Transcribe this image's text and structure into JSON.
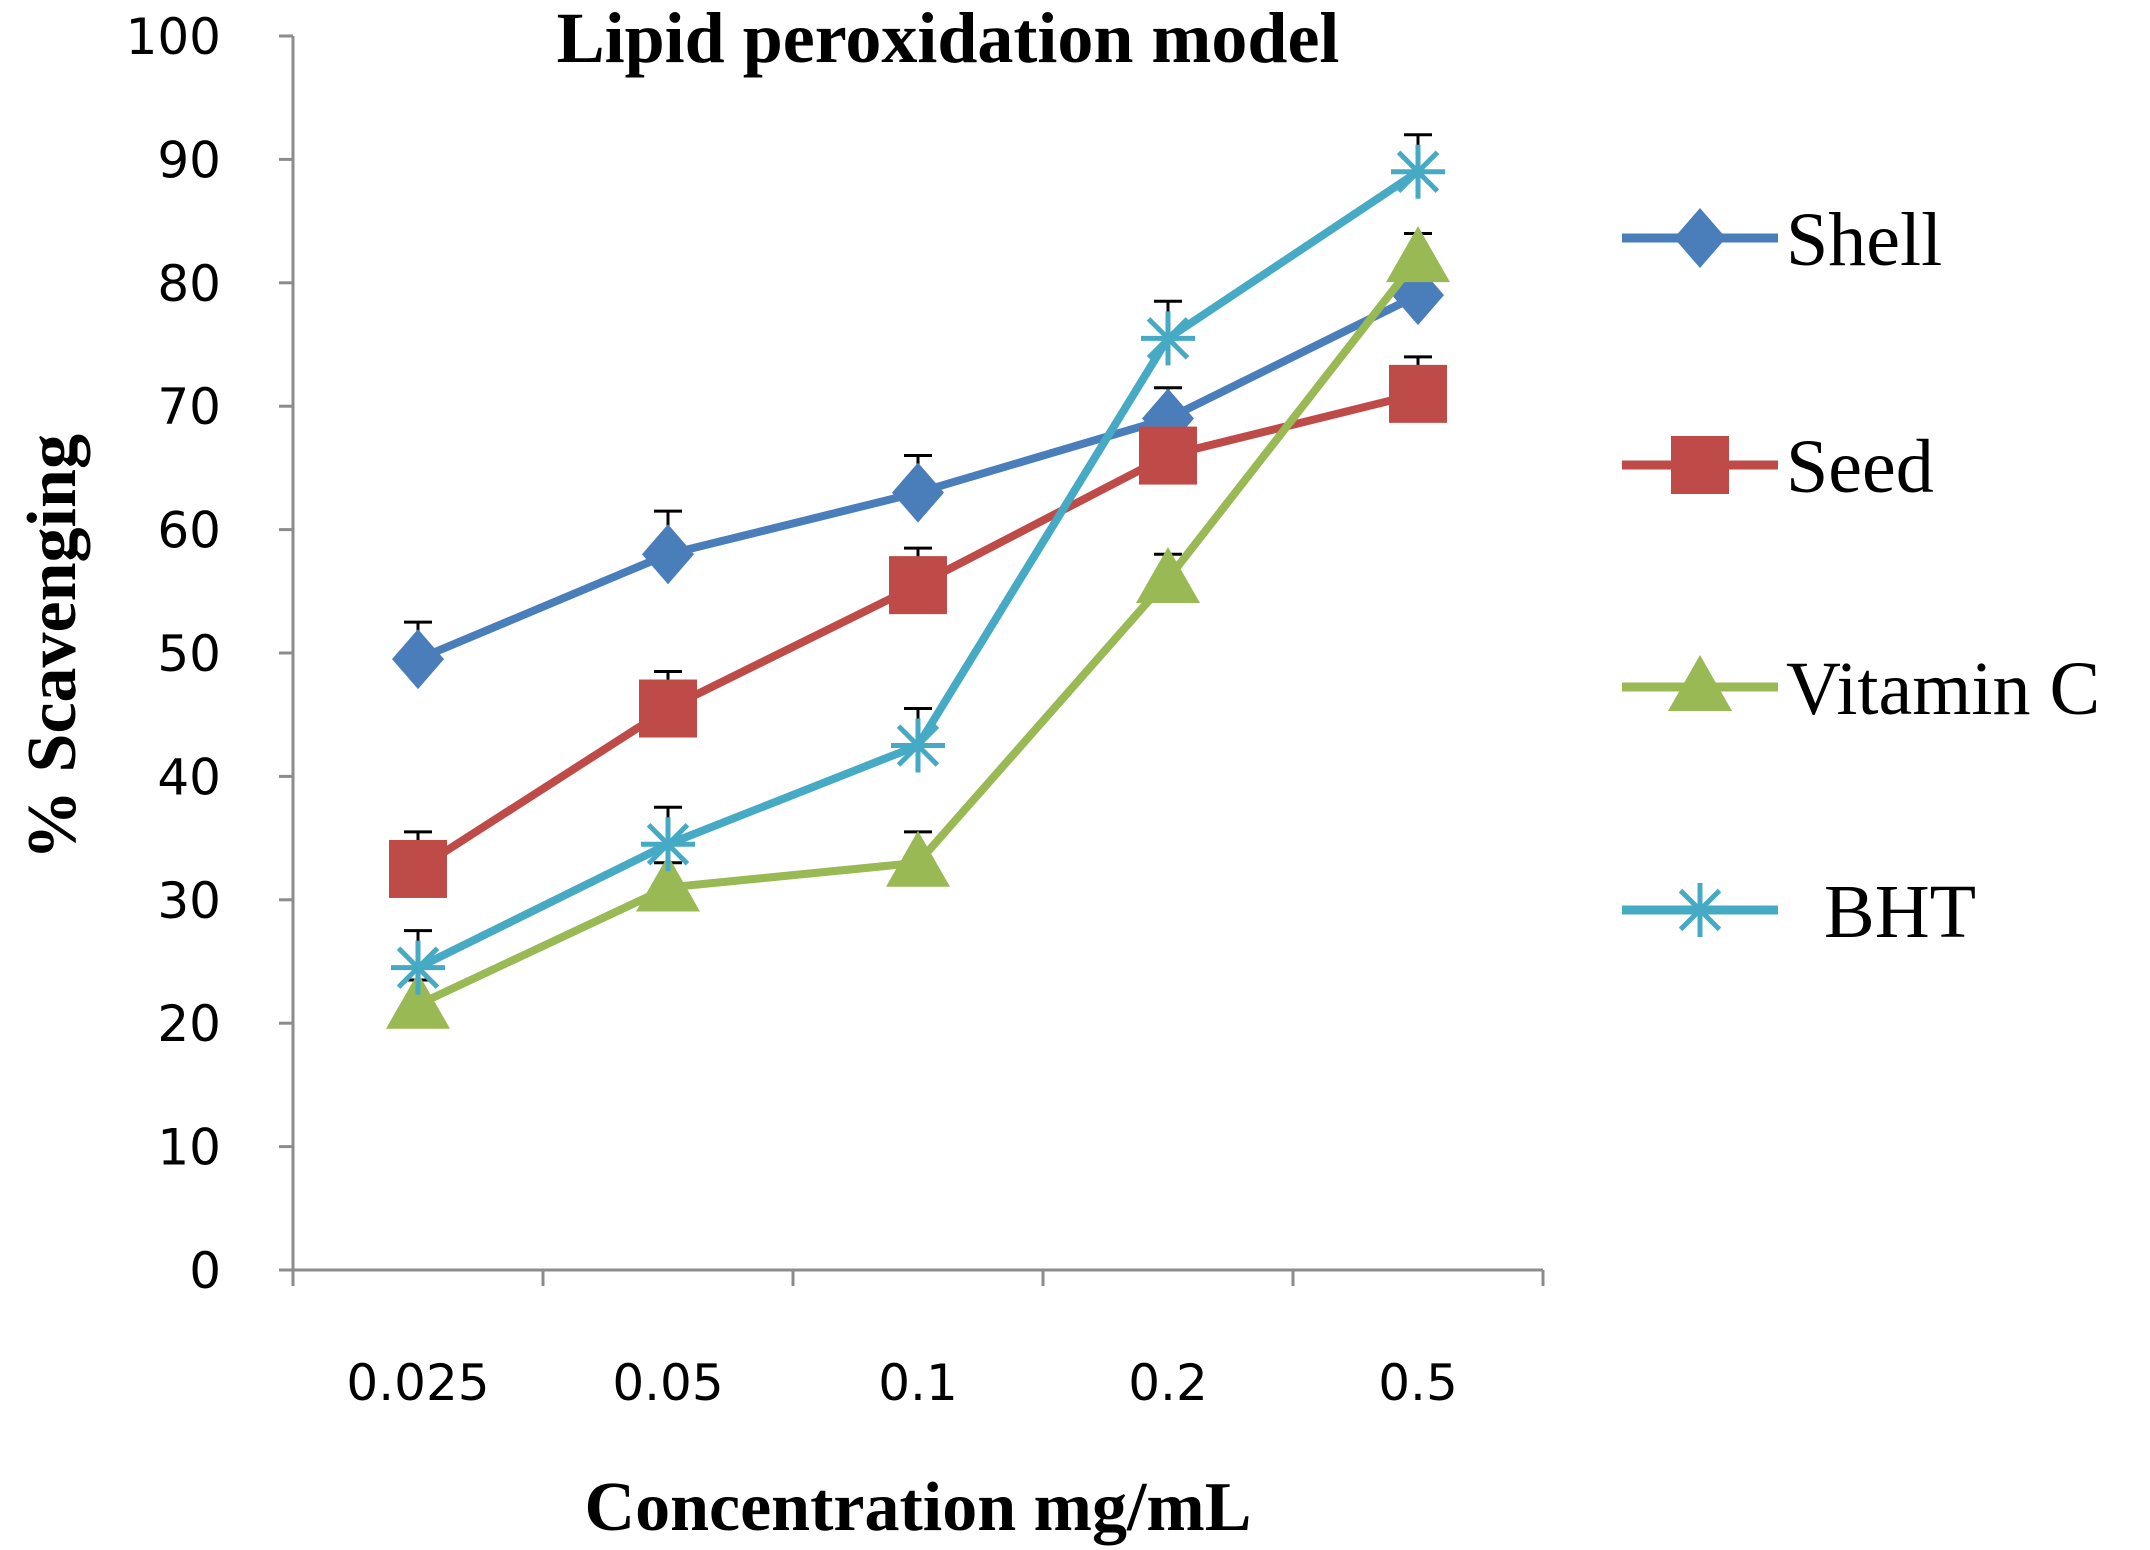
{
  "chart_data": {
    "type": "line",
    "title": "Lipid  peroxidation model",
    "xlabel": "Concentration  mg/mL",
    "ylabel": "%  Scavenging",
    "categories": [
      "0.025",
      "0.05",
      "0.1",
      "0.2",
      "0.5"
    ],
    "ylim": [
      0,
      100
    ],
    "yticks": [
      "0",
      "10",
      "20",
      "30",
      "40",
      "50",
      "60",
      "70",
      "80",
      "90",
      "100"
    ],
    "grid": false,
    "legend_position": "right",
    "series": [
      {
        "name": "Shell",
        "values": [
          49.5,
          58,
          63,
          69,
          79
        ],
        "errors": [
          3,
          3.5,
          3,
          2.5,
          3
        ],
        "color": "#4a7ebb",
        "marker": "diamond"
      },
      {
        "name": "Seed",
        "values": [
          32.5,
          45.5,
          55.5,
          66,
          71
        ],
        "errors": [
          3,
          3,
          3,
          3,
          3
        ],
        "color": "#be4b48",
        "marker": "square"
      },
      {
        "name": "Vitamin C",
        "values": [
          21.5,
          31,
          33,
          56,
          82
        ],
        "errors": [
          2,
          2,
          2.5,
          2,
          2
        ],
        "color": "#98b954",
        "marker": "triangle"
      },
      {
        "name": "BHT",
        "values": [
          24.5,
          34.5,
          42.5,
          75.5,
          89
        ],
        "errors": [
          3,
          3,
          3,
          3,
          3
        ],
        "color": "#46aac5",
        "marker": "star"
      }
    ],
    "legend_labels": [
      "Shell",
      "Seed",
      "Vitamin C",
      "  BHT"
    ]
  }
}
